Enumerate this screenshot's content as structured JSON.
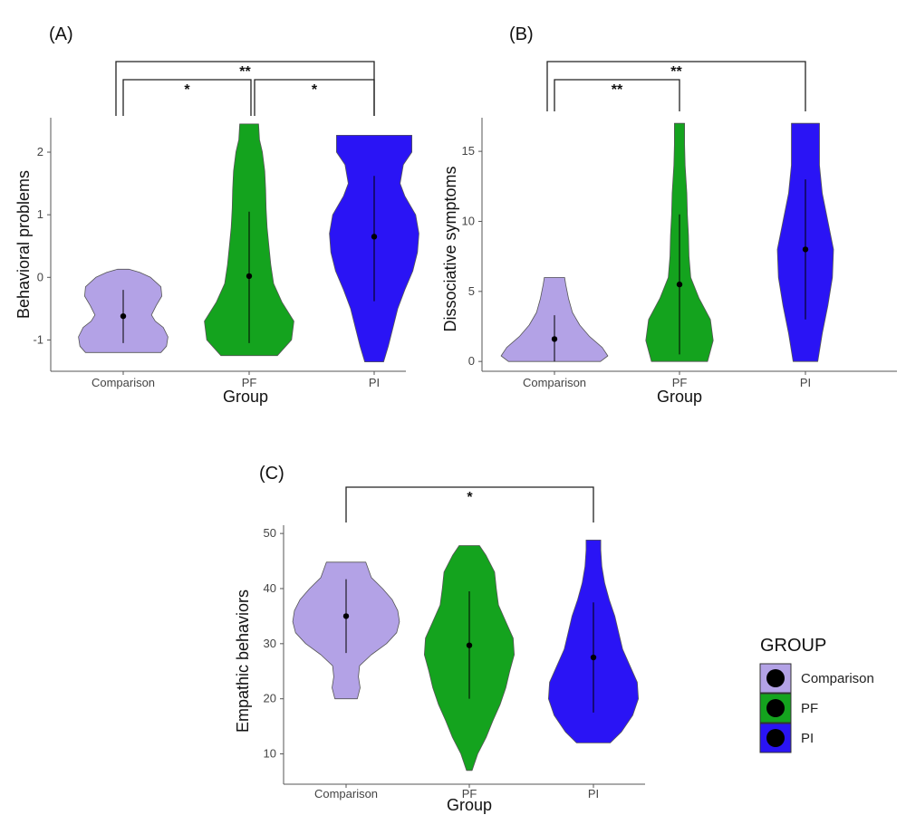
{
  "chart_data": [
    {
      "type": "violin",
      "panel_label": "(A)",
      "xlabel": "Group",
      "ylabel": "Behavioral problems",
      "categories": [
        "Comparison",
        "PF",
        "PI"
      ],
      "yticks": [
        "-1",
        "0",
        "1",
        "2"
      ],
      "ylim": [
        -1.5,
        2.55
      ],
      "series": [
        {
          "group": "Comparison",
          "mean": -0.62,
          "ci": [
            -1.05,
            -0.2
          ],
          "min": -1.2,
          "max": 0.13,
          "density": [
            [
              -1.2,
              0.8
            ],
            [
              -1.1,
              0.92
            ],
            [
              -0.95,
              0.95
            ],
            [
              -0.8,
              0.85
            ],
            [
              -0.7,
              0.68
            ],
            [
              -0.6,
              0.6
            ],
            [
              -0.45,
              0.7
            ],
            [
              -0.3,
              0.82
            ],
            [
              -0.15,
              0.8
            ],
            [
              0.0,
              0.58
            ],
            [
              0.08,
              0.35
            ],
            [
              0.13,
              0.12
            ]
          ]
        },
        {
          "group": "PF",
          "mean": 0.02,
          "ci": [
            -1.05,
            1.05
          ],
          "min": -1.25,
          "max": 2.45,
          "density": [
            [
              -1.25,
              0.6
            ],
            [
              -1.0,
              0.9
            ],
            [
              -0.7,
              0.95
            ],
            [
              -0.4,
              0.7
            ],
            [
              -0.1,
              0.52
            ],
            [
              0.2,
              0.46
            ],
            [
              0.5,
              0.42
            ],
            [
              0.8,
              0.38
            ],
            [
              1.1,
              0.36
            ],
            [
              1.4,
              0.35
            ],
            [
              1.7,
              0.33
            ],
            [
              2.0,
              0.28
            ],
            [
              2.2,
              0.22
            ],
            [
              2.45,
              0.2
            ]
          ]
        },
        {
          "group": "PI",
          "mean": 0.65,
          "ci": [
            -0.38,
            1.62
          ],
          "min": -1.35,
          "max": 2.27,
          "density": [
            [
              -1.35,
              0.2
            ],
            [
              -1.1,
              0.3
            ],
            [
              -0.8,
              0.4
            ],
            [
              -0.5,
              0.5
            ],
            [
              -0.2,
              0.65
            ],
            [
              0.1,
              0.82
            ],
            [
              0.4,
              0.92
            ],
            [
              0.7,
              0.95
            ],
            [
              1.0,
              0.88
            ],
            [
              1.3,
              0.65
            ],
            [
              1.5,
              0.55
            ],
            [
              1.8,
              0.62
            ],
            [
              2.0,
              0.8
            ],
            [
              2.27,
              0.8
            ]
          ]
        }
      ],
      "significance": [
        {
          "from": "Comparison",
          "to": "PF",
          "label": "*",
          "tier": 1
        },
        {
          "from": "PF",
          "to": "PI",
          "label": "*",
          "tier": 1
        },
        {
          "from": "Comparison",
          "to": "PI",
          "label": "**",
          "tier": 2
        }
      ]
    },
    {
      "type": "violin",
      "panel_label": "(B)",
      "xlabel": "Group",
      "ylabel": "Dissociative symptoms",
      "categories": [
        "Comparison",
        "PF",
        "PI"
      ],
      "yticks": [
        "0",
        "5",
        "10",
        "15"
      ],
      "ylim": [
        -0.7,
        17.4
      ],
      "series": [
        {
          "group": "Comparison",
          "mean": 1.6,
          "ci": [
            0.0,
            3.3
          ],
          "min": 0.0,
          "max": 6.0,
          "density": [
            [
              0.0,
              0.82
            ],
            [
              0.4,
              0.95
            ],
            [
              1.0,
              0.85
            ],
            [
              1.8,
              0.62
            ],
            [
              2.6,
              0.45
            ],
            [
              3.5,
              0.32
            ],
            [
              4.5,
              0.25
            ],
            [
              5.5,
              0.2
            ],
            [
              6.0,
              0.18
            ]
          ]
        },
        {
          "group": "PF",
          "mean": 5.5,
          "ci": [
            0.5,
            10.5
          ],
          "min": 0.0,
          "max": 17.0,
          "density": [
            [
              0.0,
              0.5
            ],
            [
              1.5,
              0.6
            ],
            [
              3.0,
              0.55
            ],
            [
              4.5,
              0.35
            ],
            [
              6.0,
              0.2
            ],
            [
              7.5,
              0.17
            ],
            [
              9.0,
              0.16
            ],
            [
              10.5,
              0.14
            ],
            [
              12.0,
              0.13
            ],
            [
              14.0,
              0.1
            ],
            [
              15.5,
              0.09
            ],
            [
              17.0,
              0.09
            ]
          ]
        },
        {
          "group": "PI",
          "mean": 8.0,
          "ci": [
            3.0,
            13.0
          ],
          "min": 0.0,
          "max": 17.0,
          "density": [
            [
              0.0,
              0.22
            ],
            [
              2.0,
              0.3
            ],
            [
              4.0,
              0.4
            ],
            [
              6.0,
              0.48
            ],
            [
              8.0,
              0.5
            ],
            [
              10.0,
              0.4
            ],
            [
              12.0,
              0.3
            ],
            [
              14.0,
              0.25
            ],
            [
              15.5,
              0.25
            ],
            [
              17.0,
              0.25
            ]
          ]
        }
      ],
      "significance": [
        {
          "from": "Comparison",
          "to": "PF",
          "label": "**",
          "tier": 1
        },
        {
          "from": "Comparison",
          "to": "PI",
          "label": "**",
          "tier": 2
        }
      ]
    },
    {
      "type": "violin",
      "panel_label": "(C)",
      "xlabel": "Group",
      "ylabel": "Empathic behaviors",
      "categories": [
        "Comparison",
        "PF",
        "PI"
      ],
      "yticks": [
        "10",
        "20",
        "30",
        "40",
        "50"
      ],
      "ylim": [
        4.5,
        51.5
      ],
      "series": [
        {
          "group": "Comparison",
          "mean": 35.0,
          "ci": [
            28.3,
            41.7
          ],
          "min": 20.0,
          "max": 44.8,
          "density": [
            [
              20.0,
              0.2
            ],
            [
              22.0,
              0.25
            ],
            [
              24.0,
              0.22
            ],
            [
              26.0,
              0.24
            ],
            [
              28.0,
              0.45
            ],
            [
              30.0,
              0.72
            ],
            [
              32.0,
              0.9
            ],
            [
              34.0,
              0.95
            ],
            [
              36.0,
              0.92
            ],
            [
              38.0,
              0.82
            ],
            [
              40.0,
              0.65
            ],
            [
              42.0,
              0.45
            ],
            [
              44.8,
              0.35
            ]
          ]
        },
        {
          "group": "PF",
          "mean": 29.7,
          "ci": [
            20.0,
            39.5
          ],
          "min": 7.0,
          "max": 47.8,
          "density": [
            [
              7.0,
              0.05
            ],
            [
              10.0,
              0.15
            ],
            [
              13.0,
              0.3
            ],
            [
              16.0,
              0.42
            ],
            [
              19.0,
              0.55
            ],
            [
              22.0,
              0.65
            ],
            [
              25.0,
              0.72
            ],
            [
              28.0,
              0.8
            ],
            [
              31.0,
              0.78
            ],
            [
              34.0,
              0.65
            ],
            [
              37.0,
              0.52
            ],
            [
              40.0,
              0.48
            ],
            [
              43.0,
              0.45
            ],
            [
              46.0,
              0.3
            ],
            [
              47.8,
              0.18
            ]
          ]
        },
        {
          "group": "PI",
          "mean": 27.5,
          "ci": [
            17.5,
            37.5
          ],
          "min": 12.0,
          "max": 48.8,
          "density": [
            [
              12.0,
              0.3
            ],
            [
              14.0,
              0.5
            ],
            [
              17.0,
              0.7
            ],
            [
              20.0,
              0.8
            ],
            [
              23.0,
              0.78
            ],
            [
              26.0,
              0.65
            ],
            [
              29.0,
              0.52
            ],
            [
              32.0,
              0.45
            ],
            [
              35.0,
              0.38
            ],
            [
              38.0,
              0.28
            ],
            [
              41.0,
              0.2
            ],
            [
              44.0,
              0.15
            ],
            [
              47.0,
              0.13
            ],
            [
              48.8,
              0.13
            ]
          ]
        }
      ],
      "significance": [
        {
          "from": "Comparison",
          "to": "PI",
          "label": "*",
          "tier": 1
        }
      ]
    }
  ],
  "legend": {
    "title": "GROUP",
    "items": [
      {
        "label": "Comparison",
        "color": "#b3a2e6"
      },
      {
        "label": "PF",
        "color": "#14a31e"
      },
      {
        "label": "PI",
        "color": "#2a14f5"
      }
    ]
  },
  "colors": {
    "Comparison": "#b3a2e6",
    "PF": "#14a31e",
    "PI": "#2a14f5"
  }
}
